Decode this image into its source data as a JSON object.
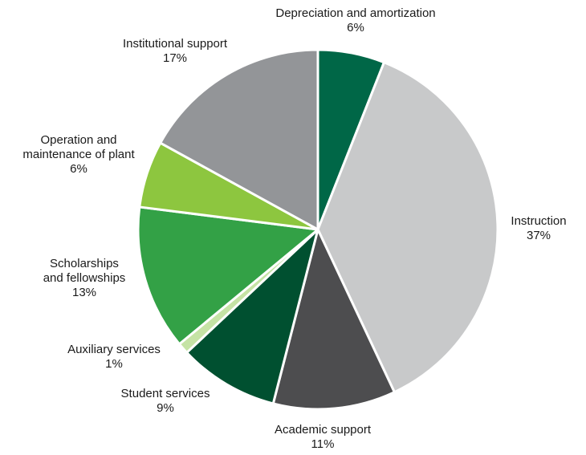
{
  "chart_data": {
    "type": "pie",
    "title": "",
    "start_angle_deg": 0,
    "direction": "clockwise",
    "slices": [
      {
        "label_lines": [
          "Depreciation and amortization"
        ],
        "value": 6,
        "value_label": "6%",
        "color": "#006747"
      },
      {
        "label_lines": [
          "Instruction"
        ],
        "value": 37,
        "value_label": "37%",
        "color": "#c8c9ca"
      },
      {
        "label_lines": [
          "Academic support"
        ],
        "value": 11,
        "value_label": "11%",
        "color": "#4d4d4f"
      },
      {
        "label_lines": [
          "Student services"
        ],
        "value": 9,
        "value_label": "9%",
        "color": "#005030"
      },
      {
        "label_lines": [
          "Auxiliary services"
        ],
        "value": 1,
        "value_label": "1%",
        "color": "#c5e3a5"
      },
      {
        "label_lines": [
          "Scholarships",
          "and fellowships"
        ],
        "value": 13,
        "value_label": "13%",
        "color": "#33a146"
      },
      {
        "label_lines": [
          "Operation and",
          "maintenance of plant"
        ],
        "value": 6,
        "value_label": "6%",
        "color": "#8dc63f"
      },
      {
        "label_lines": [
          "Institutional support"
        ],
        "value": 17,
        "value_label": "17%",
        "color": "#939598"
      }
    ]
  }
}
